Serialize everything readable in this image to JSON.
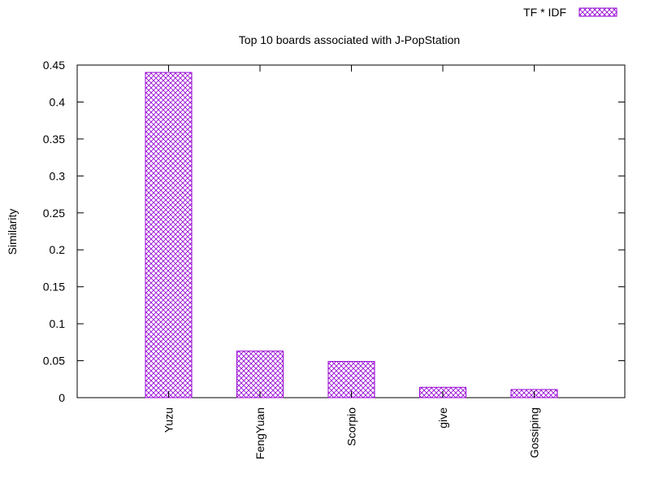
{
  "chart_data": {
    "type": "bar",
    "title": "Top 10 boards associated with J-PopStation",
    "xlabel": "",
    "ylabel": "Similarity",
    "categories": [
      "Yuzu",
      "FengYuan",
      "Scorpio",
      "give",
      "Gossiping"
    ],
    "series": [
      {
        "name": "TF * IDF",
        "values": [
          0.44,
          0.063,
          0.049,
          0.014,
          0.011
        ]
      }
    ],
    "ylim": [
      0,
      0.45
    ],
    "yticks": [
      "0",
      "0.05",
      "0.1",
      "0.15",
      "0.2",
      "0.25",
      "0.3",
      "0.35",
      "0.4",
      "0.45"
    ],
    "grid": false,
    "legend_position": "top-right",
    "bar_fill": "crosshatch",
    "colors": {
      "bar_stroke": "#9400D3",
      "axis": "#000000",
      "background": "#ffffff"
    }
  }
}
